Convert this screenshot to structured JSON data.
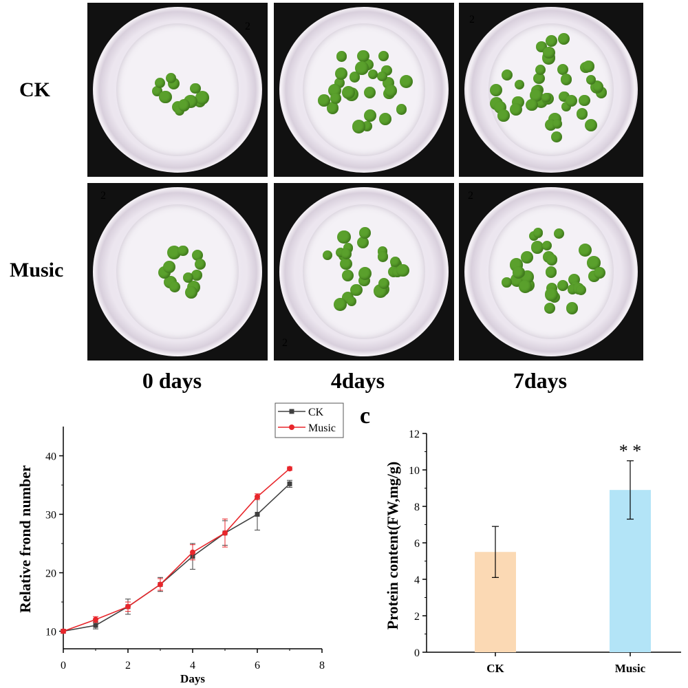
{
  "row_labels": [
    "CK",
    "Music"
  ],
  "day_labels": [
    "0 days",
    "4days",
    "7days"
  ],
  "dish_numbers": [
    "2",
    "2",
    "2",
    "2",
    "2",
    "2"
  ],
  "frond_counts": [
    12,
    28,
    40,
    12,
    26,
    32
  ],
  "colors": {
    "ck": "#404040",
    "music": "#e8262b",
    "bar_ck": "#fbd9b4",
    "bar_music": "#b3e4f7",
    "frond": "#5aa02c"
  },
  "chart_data": [
    {
      "type": "line",
      "title": "",
      "xlabel": "Days",
      "ylabel": "Relative frond number",
      "xlim": [
        0,
        8
      ],
      "ylim": [
        7,
        45
      ],
      "xticks": [
        0,
        2,
        4,
        6,
        8
      ],
      "yticks": [
        10,
        20,
        30,
        40
      ],
      "grid": false,
      "legend": "top-right",
      "x": [
        0,
        1,
        2,
        3,
        4,
        5,
        6,
        7
      ],
      "series": [
        {
          "name": "CK",
          "values": [
            10,
            11,
            14.2,
            18,
            22.8,
            26.8,
            30,
            35.2
          ],
          "errors": [
            0.3,
            0.6,
            1.3,
            1.2,
            2.2,
            2.1,
            2.7,
            0.6
          ]
        },
        {
          "name": "Music",
          "values": [
            10,
            12,
            14.2,
            18,
            23.5,
            26.8,
            33,
            37.8
          ],
          "errors": [
            0.3,
            0.5,
            0.8,
            1.0,
            1.3,
            2.4,
            0.5,
            0.3
          ]
        }
      ]
    },
    {
      "type": "bar",
      "panel": "c",
      "title": "",
      "xlabel": "",
      "ylabel": "Protein content(FW,mg/g)",
      "ylim": [
        0,
        12
      ],
      "yticks": [
        0,
        2,
        4,
        6,
        8,
        10,
        12
      ],
      "grid": false,
      "categories": [
        "CK",
        "Music"
      ],
      "values": [
        5.5,
        8.9
      ],
      "errors": [
        1.4,
        1.6
      ],
      "annotations": [
        "",
        "* *"
      ]
    }
  ]
}
